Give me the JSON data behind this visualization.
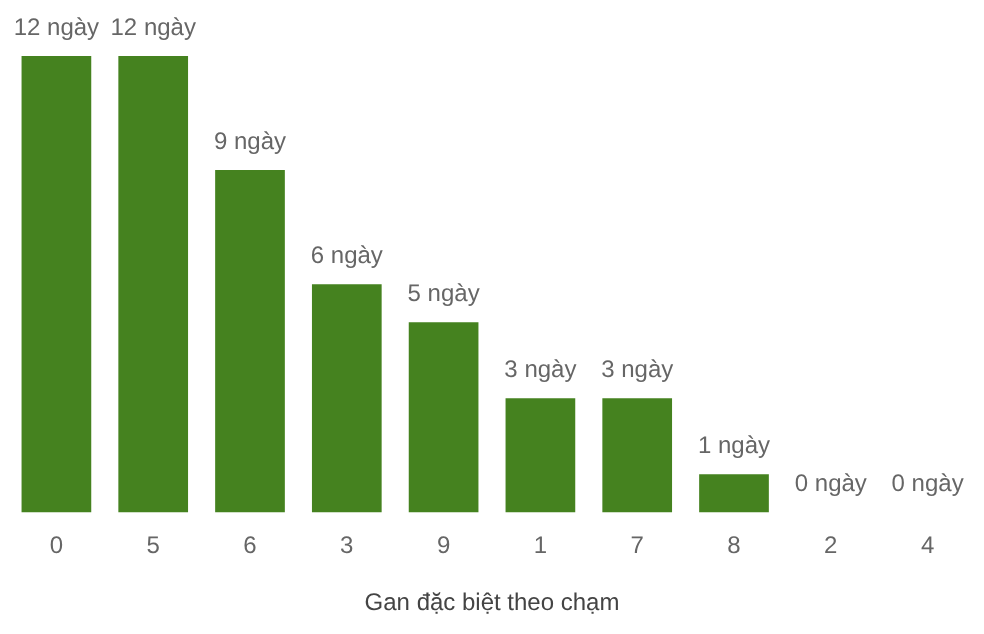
{
  "chart_data": {
    "type": "bar",
    "xlabel": "Gan đặc biệt theo chạm",
    "categories": [
      "0",
      "5",
      "6",
      "3",
      "9",
      "1",
      "7",
      "8",
      "2",
      "4"
    ],
    "values": [
      12,
      12,
      9,
      6,
      5,
      3,
      3,
      1,
      0,
      0
    ],
    "value_labels": [
      "12 ngày",
      "12 ngày",
      "9 ngày",
      "6 ngày",
      "5 ngày",
      "3 ngày",
      "3 ngày",
      "1 ngày",
      "0 ngày",
      "0 ngày"
    ],
    "color": "#45821f",
    "grid": false,
    "legend": false,
    "tick_labels": "x"
  }
}
